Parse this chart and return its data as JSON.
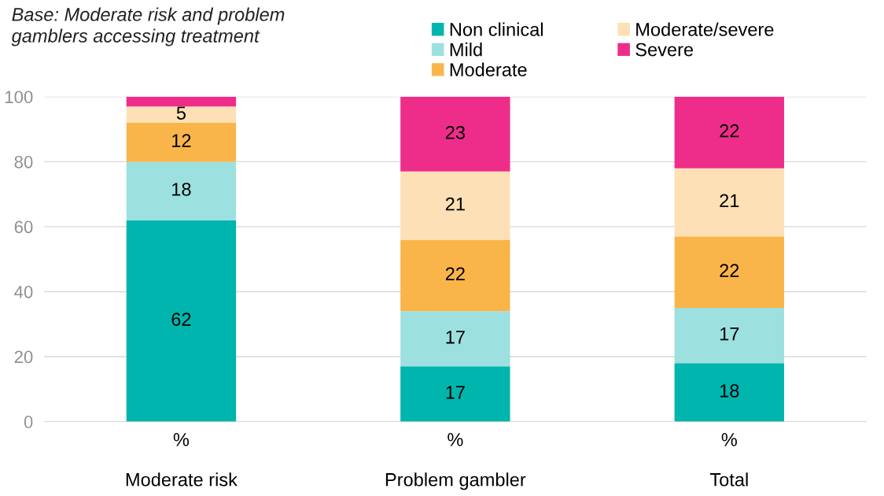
{
  "chart_data": {
    "type": "bar",
    "stacked": true,
    "categories": [
      "%\n\nModerate risk",
      "%\n\nProblem gambler",
      "%\n\nTotal"
    ],
    "series": [
      {
        "name": "Non clinical",
        "color": "#00b5ad",
        "values": [
          62,
          17,
          18
        ],
        "value_labels": [
          "62",
          "17",
          "18"
        ]
      },
      {
        "name": "Mild",
        "color": "#9de0e0",
        "values": [
          18,
          17,
          17
        ],
        "value_labels": [
          "18",
          "17",
          "17"
        ]
      },
      {
        "name": "Moderate",
        "color": "#f9b54a",
        "values": [
          12,
          22,
          22
        ],
        "value_labels": [
          "12",
          "22",
          "22"
        ]
      },
      {
        "name": "Moderate/severe",
        "color": "#fde0b5",
        "values": [
          5,
          21,
          21
        ],
        "value_labels": [
          "5",
          "21",
          "21"
        ]
      },
      {
        "name": "Severe",
        "color": "#ee2d8a",
        "values": [
          3,
          23,
          22
        ],
        "value_labels": [
          null,
          "23",
          "22"
        ]
      }
    ],
    "ylim": [
      0,
      100
    ],
    "yticks": [
      0,
      20,
      40,
      60,
      80,
      100
    ],
    "grid": "y",
    "legend": "top",
    "annotations": [
      "Base: Moderate risk and problem\ngamblers accessing treatment"
    ]
  }
}
